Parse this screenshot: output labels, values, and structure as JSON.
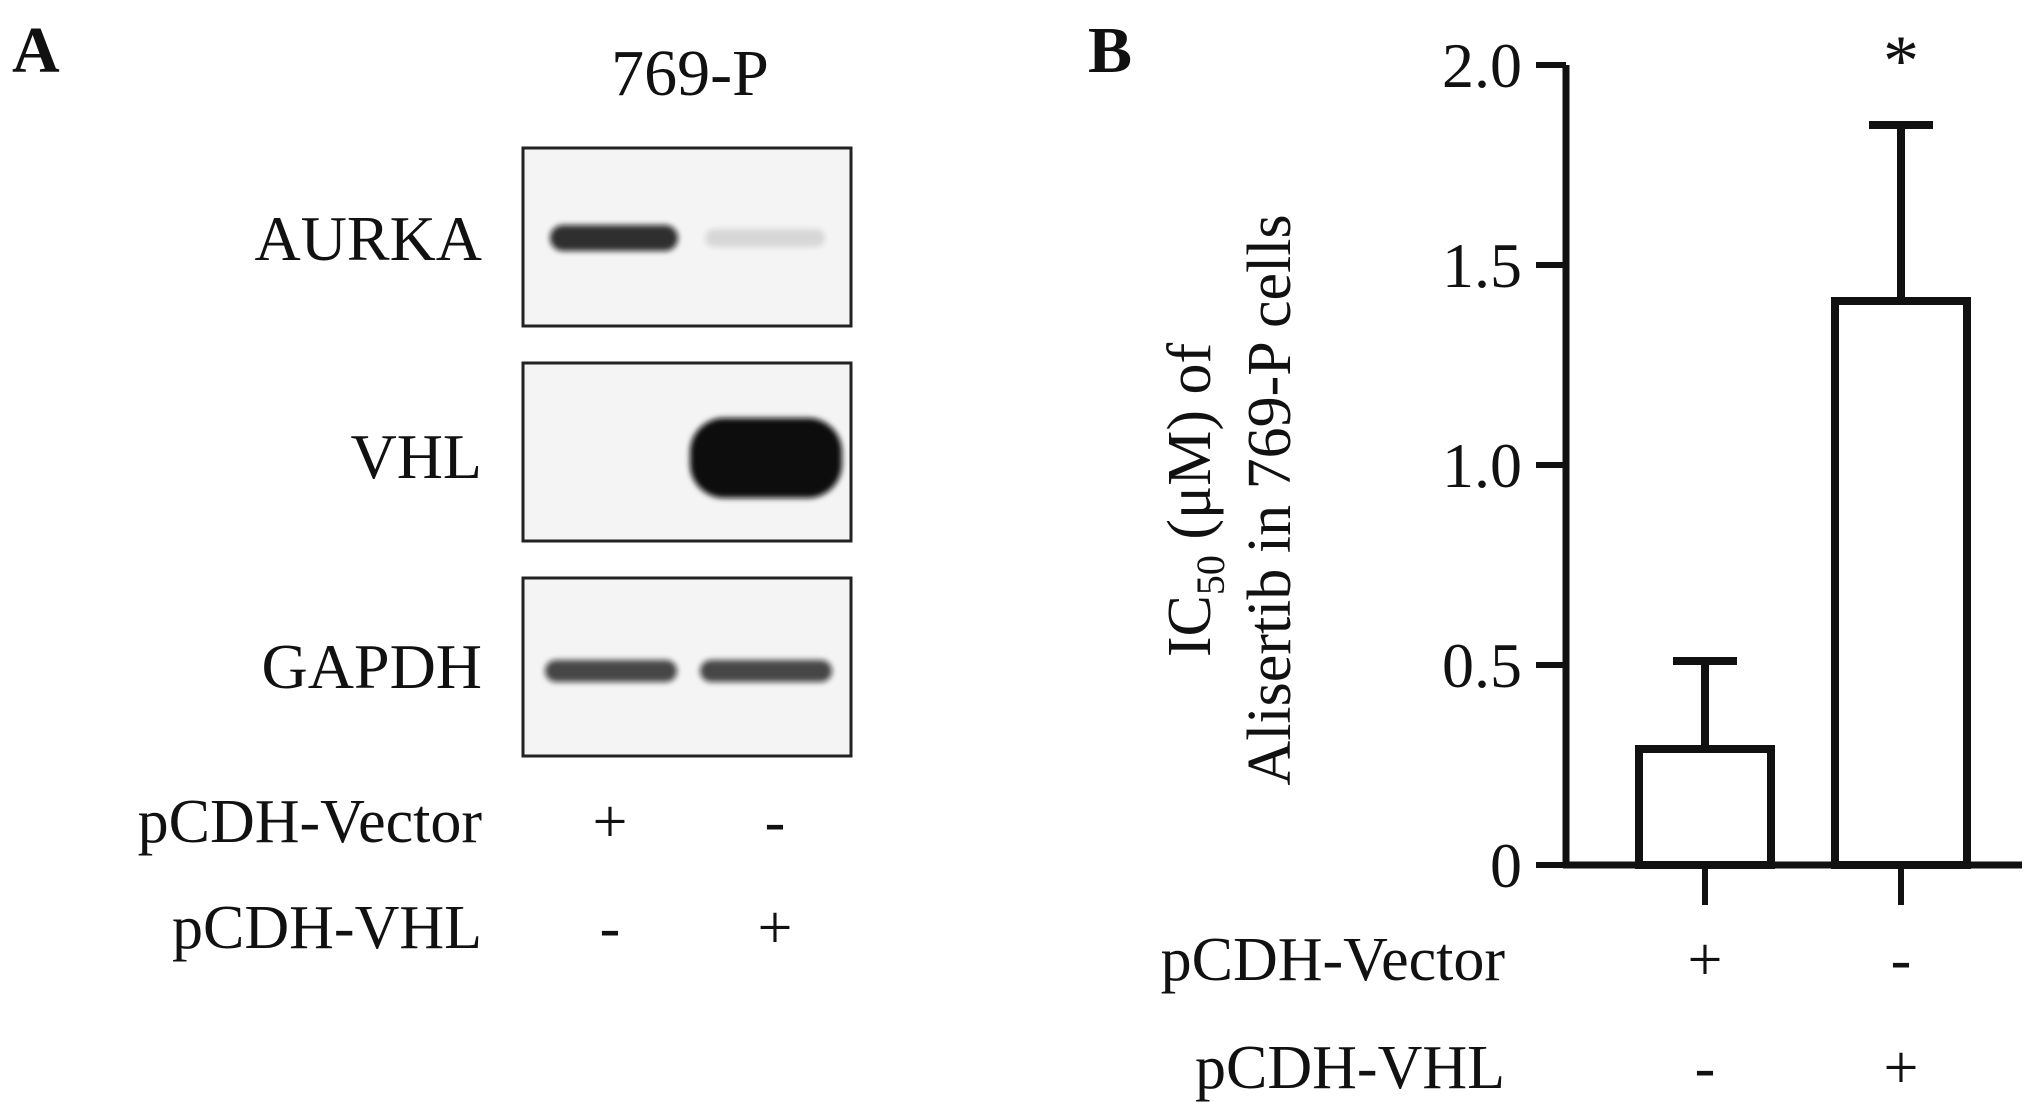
{
  "panel_a": {
    "letter": "A",
    "cell_line": "769-P",
    "blots": [
      {
        "label": "AURKA",
        "bands": [
          0.85,
          0.12
        ]
      },
      {
        "label": "VHL",
        "bands": [
          0.0,
          1.0
        ]
      },
      {
        "label": "GAPDH",
        "bands": [
          0.75,
          0.75
        ]
      }
    ],
    "conditions": [
      {
        "label": "pCDH-Vector",
        "signs": [
          "+",
          "-"
        ]
      },
      {
        "label": "pCDH-VHL",
        "signs": [
          "-",
          "+"
        ]
      }
    ]
  },
  "chart_data": {
    "type": "bar",
    "panel_letter": "B",
    "ylabel_line1_prefix": "IC",
    "ylabel_line1_sub": "50",
    "ylabel_line1_suffix": " (μM) of",
    "ylabel_line2": "Alisertib in 769-P cells",
    "ylim": [
      0,
      2.0
    ],
    "yticks": [
      {
        "value": 0,
        "label": "0"
      },
      {
        "value": 0.5,
        "label": "0.5"
      },
      {
        "value": 1.0,
        "label": "1.0"
      },
      {
        "value": 1.5,
        "label": "1.5"
      },
      {
        "value": 2.0,
        "label": "2.0"
      }
    ],
    "categories": [
      "Vector",
      "VHL"
    ],
    "values": [
      0.29,
      1.41
    ],
    "errors": [
      0.22,
      0.44
    ],
    "annotations": [
      "",
      "*"
    ],
    "conditions": [
      {
        "label": "pCDH-Vector",
        "signs": [
          "+",
          "-"
        ]
      },
      {
        "label": "pCDH-VHL",
        "signs": [
          "-",
          "+"
        ]
      }
    ]
  }
}
